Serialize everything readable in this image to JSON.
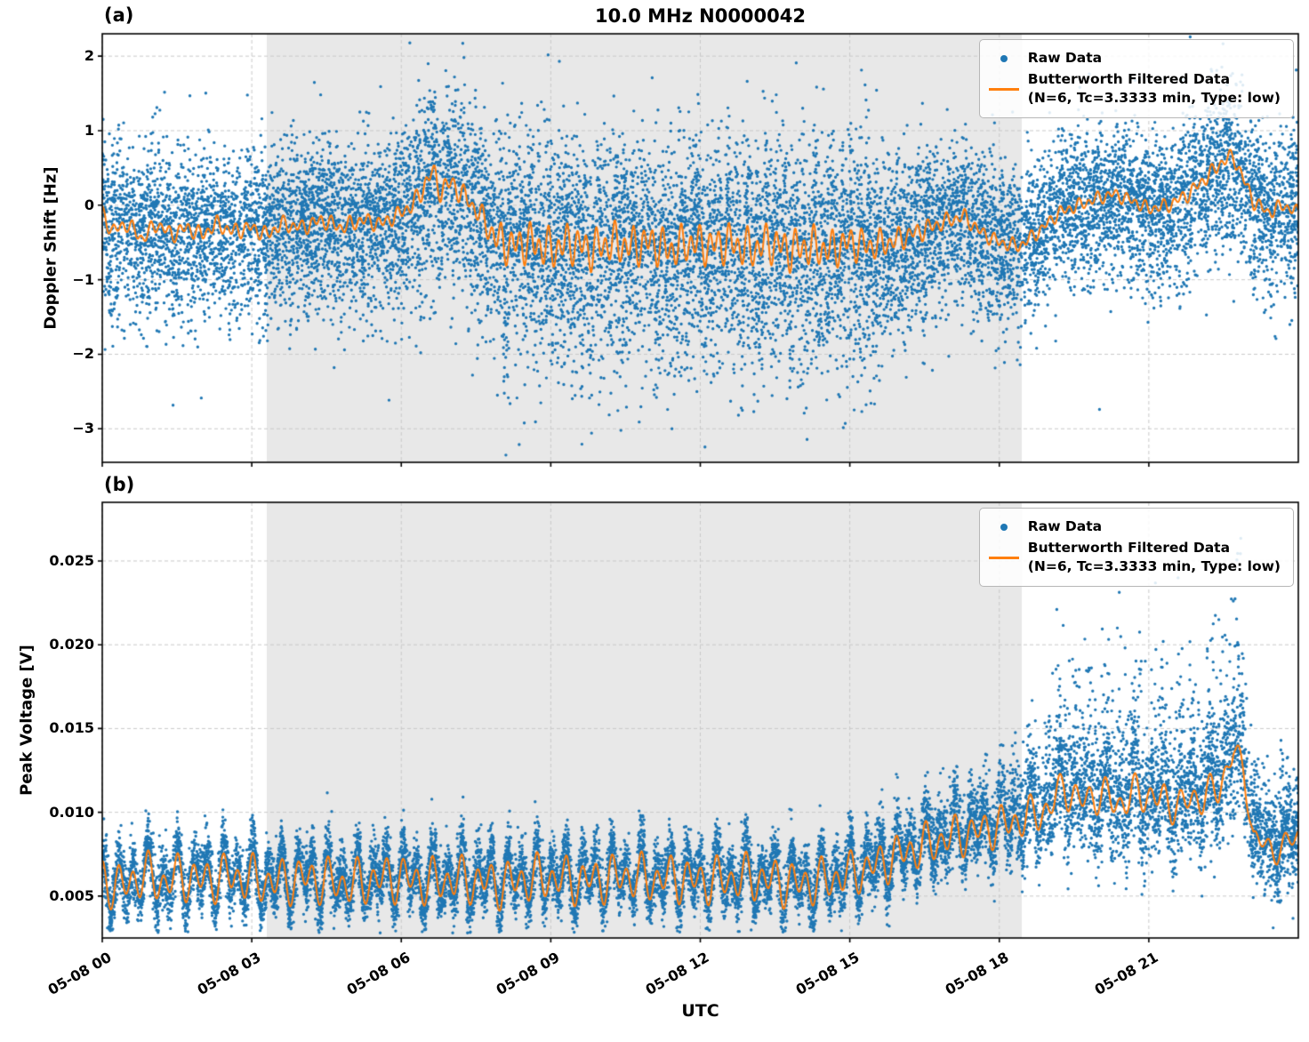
{
  "title": "10.0 MHz N0000042",
  "xlabel": "UTC",
  "legend": {
    "raw_label": "Raw Data",
    "filtered_label": "Butterworth Filtered Data",
    "filtered_sublabel": "(N=6, Tc=3.3333 min, Type: low)"
  },
  "colors": {
    "raw": "#1f77b4",
    "filtered": "#ff7f0e",
    "shade": "#e8e8e8",
    "grid": "#c9c9c9",
    "spine": "#000000"
  },
  "chart_data": [
    {
      "type": "scatter",
      "panel_label": "(a)",
      "ylabel": "Doppler Shift [Hz]",
      "ylim": [
        -3.45,
        2.3
      ],
      "yticks": [
        2,
        1,
        0,
        -1,
        -2,
        -3
      ],
      "ytick_labels": [
        "2",
        "1",
        "0",
        "−1",
        "−2",
        "−3"
      ],
      "xlim_hours": [
        0,
        24
      ],
      "xtick_hours": [
        0,
        3,
        6,
        9,
        12,
        15,
        18,
        21
      ],
      "xtick_labels": [
        "05-08 00",
        "05-08 03",
        "05-08 06",
        "05-08 09",
        "05-08 12",
        "05-08 15",
        "05-08 18",
        "05-08 21"
      ],
      "show_xtick_labels": false,
      "grid": true,
      "legend_position": "upper right",
      "shade_span_hours": [
        3.3,
        18.45
      ],
      "series": [
        {
          "name": "Raw Data",
          "style": "scatter"
        },
        {
          "name": "Butterworth Filtered Data (N=6, Tc=3.3333 min, Type: low)",
          "style": "line"
        }
      ],
      "filtered_trend": [
        [
          0,
          -0.1
        ],
        [
          0.2,
          -0.35
        ],
        [
          0.5,
          -0.25
        ],
        [
          0.8,
          -0.45
        ],
        [
          1.1,
          -0.25
        ],
        [
          1.4,
          -0.4
        ],
        [
          1.7,
          -0.3
        ],
        [
          2,
          -0.4
        ],
        [
          2.3,
          -0.25
        ],
        [
          2.6,
          -0.35
        ],
        [
          3,
          -0.3
        ],
        [
          3.3,
          -0.4
        ],
        [
          3.6,
          -0.25
        ],
        [
          4,
          -0.3
        ],
        [
          4.4,
          -0.2
        ],
        [
          4.8,
          -0.3
        ],
        [
          5.2,
          -0.2
        ],
        [
          5.6,
          -0.25
        ],
        [
          6,
          -0.1
        ],
        [
          6.3,
          0.05
        ],
        [
          6.6,
          0.45
        ],
        [
          6.8,
          0.2
        ],
        [
          7,
          0.3
        ],
        [
          7.3,
          0.1
        ],
        [
          7.6,
          -0.15
        ],
        [
          7.9,
          -0.45
        ],
        [
          8.2,
          -0.55
        ],
        [
          8.6,
          -0.5
        ],
        [
          9,
          -0.6
        ],
        [
          9.4,
          -0.5
        ],
        [
          9.8,
          -0.6
        ],
        [
          10.2,
          -0.5
        ],
        [
          10.6,
          -0.55
        ],
        [
          11,
          -0.5
        ],
        [
          11.4,
          -0.6
        ],
        [
          11.8,
          -0.5
        ],
        [
          12.2,
          -0.55
        ],
        [
          12.6,
          -0.5
        ],
        [
          13,
          -0.6
        ],
        [
          13.4,
          -0.5
        ],
        [
          13.8,
          -0.6
        ],
        [
          14.2,
          -0.55
        ],
        [
          14.6,
          -0.6
        ],
        [
          15,
          -0.5
        ],
        [
          15.4,
          -0.55
        ],
        [
          15.8,
          -0.5
        ],
        [
          16.2,
          -0.4
        ],
        [
          16.6,
          -0.3
        ],
        [
          17,
          -0.2
        ],
        [
          17.3,
          -0.15
        ],
        [
          17.6,
          -0.35
        ],
        [
          18,
          -0.5
        ],
        [
          18.4,
          -0.55
        ],
        [
          18.8,
          -0.35
        ],
        [
          19.2,
          -0.1
        ],
        [
          19.6,
          0.0
        ],
        [
          20,
          0.1
        ],
        [
          20.3,
          0.15
        ],
        [
          20.7,
          0.05
        ],
        [
          21,
          -0.05
        ],
        [
          21.4,
          0.0
        ],
        [
          21.8,
          0.15
        ],
        [
          22.2,
          0.4
        ],
        [
          22.5,
          0.6
        ],
        [
          22.7,
          0.65
        ],
        [
          22.9,
          0.35
        ],
        [
          23.1,
          0.05
        ],
        [
          23.4,
          -0.1
        ],
        [
          23.7,
          0.0
        ],
        [
          24,
          -0.1
        ]
      ],
      "osc_amp": [
        [
          0,
          0.12
        ],
        [
          6,
          0.12
        ],
        [
          6.6,
          0.2
        ],
        [
          7.5,
          0.15
        ],
        [
          8,
          0.3
        ],
        [
          9,
          0.32
        ],
        [
          12,
          0.3
        ],
        [
          14,
          0.32
        ],
        [
          15,
          0.28
        ],
        [
          16,
          0.18
        ],
        [
          17,
          0.12
        ],
        [
          19,
          0.1
        ],
        [
          21,
          0.1
        ],
        [
          22.5,
          0.12
        ],
        [
          24,
          0.1
        ]
      ],
      "osc_periods_h": [
        0.19,
        0.333
      ],
      "osc_phases": [
        0.7,
        2.3
      ],
      "raw_sigma": [
        [
          0,
          0.55
        ],
        [
          3,
          0.5
        ],
        [
          5,
          0.5
        ],
        [
          6.5,
          0.6
        ],
        [
          8,
          0.65
        ],
        [
          9,
          0.7
        ],
        [
          11,
          0.65
        ],
        [
          13,
          0.7
        ],
        [
          15,
          0.65
        ],
        [
          16,
          0.55
        ],
        [
          17,
          0.5
        ],
        [
          18,
          0.5
        ],
        [
          19,
          0.4
        ],
        [
          20,
          0.45
        ],
        [
          21,
          0.45
        ],
        [
          22,
          0.5
        ],
        [
          22.7,
          0.55
        ],
        [
          23,
          0.45
        ],
        [
          24,
          0.5
        ]
      ],
      "raw_osc_scale": 1.0,
      "skew_down": 1.2,
      "tail_prob": 0.012,
      "tail_scale": 0.9,
      "n_raw_points": 15000,
      "seed": 42
    },
    {
      "type": "scatter",
      "panel_label": "(b)",
      "ylabel": "Peak Voltage [V]",
      "ylim": [
        0.0025,
        0.0285
      ],
      "yticks": [
        0.025,
        0.02,
        0.015,
        0.01,
        0.005
      ],
      "ytick_labels": [
        "0.025",
        "0.020",
        "0.015",
        "0.010",
        "0.005"
      ],
      "xlim_hours": [
        0,
        24
      ],
      "xtick_hours": [
        0,
        3,
        6,
        9,
        12,
        15,
        18,
        21
      ],
      "xtick_labels": [
        "05-08 00",
        "05-08 03",
        "05-08 06",
        "05-08 09",
        "05-08 12",
        "05-08 15",
        "05-08 18",
        "05-08 21"
      ],
      "show_xtick_labels": true,
      "grid": true,
      "legend_position": "upper right",
      "shade_span_hours": [
        3.3,
        18.45
      ],
      "series": [
        {
          "name": "Raw Data",
          "style": "scatter"
        },
        {
          "name": "Butterworth Filtered Data (N=6, Tc=3.3333 min, Type: low)",
          "style": "line"
        }
      ],
      "filtered_trend": [
        [
          0,
          0.006
        ],
        [
          0.4,
          0.0055
        ],
        [
          0.8,
          0.0063
        ],
        [
          1.2,
          0.0058
        ],
        [
          1.6,
          0.0062
        ],
        [
          2,
          0.0059
        ],
        [
          2.5,
          0.0062
        ],
        [
          3,
          0.006
        ],
        [
          3.5,
          0.0058
        ],
        [
          4,
          0.0061
        ],
        [
          4.5,
          0.0059
        ],
        [
          5,
          0.0057
        ],
        [
          5.5,
          0.006
        ],
        [
          6,
          0.0061
        ],
        [
          6.5,
          0.0058
        ],
        [
          7,
          0.006
        ],
        [
          7.5,
          0.0059
        ],
        [
          8,
          0.0057
        ],
        [
          8.5,
          0.006
        ],
        [
          9,
          0.0061
        ],
        [
          9.5,
          0.0059
        ],
        [
          10,
          0.006
        ],
        [
          10.5,
          0.0062
        ],
        [
          11,
          0.006
        ],
        [
          11.5,
          0.0061
        ],
        [
          12,
          0.0059
        ],
        [
          12.5,
          0.006
        ],
        [
          13,
          0.0061
        ],
        [
          13.5,
          0.0059
        ],
        [
          14,
          0.0057
        ],
        [
          14.5,
          0.0059
        ],
        [
          15,
          0.0063
        ],
        [
          15.5,
          0.0068
        ],
        [
          16,
          0.0075
        ],
        [
          16.5,
          0.008
        ],
        [
          17,
          0.0085
        ],
        [
          17.5,
          0.0088
        ],
        [
          18,
          0.0092
        ],
        [
          18.5,
          0.0096
        ],
        [
          19,
          0.0102
        ],
        [
          19.3,
          0.0116
        ],
        [
          19.6,
          0.0106
        ],
        [
          20,
          0.0111
        ],
        [
          20.4,
          0.0105
        ],
        [
          20.8,
          0.0112
        ],
        [
          21.2,
          0.0108
        ],
        [
          21.6,
          0.0104
        ],
        [
          22,
          0.0109
        ],
        [
          22.4,
          0.0113
        ],
        [
          22.7,
          0.0138
        ],
        [
          22.9,
          0.0124
        ],
        [
          23.1,
          0.0086
        ],
        [
          23.5,
          0.0076
        ],
        [
          24,
          0.0086
        ]
      ],
      "osc_amp": [
        [
          0,
          0.0016
        ],
        [
          14,
          0.0016
        ],
        [
          15,
          0.0015
        ],
        [
          16,
          0.0015
        ],
        [
          18,
          0.0014
        ],
        [
          19,
          0.0013
        ],
        [
          21,
          0.0013
        ],
        [
          22.5,
          0.0012
        ],
        [
          23,
          0.0008
        ],
        [
          24,
          0.0009
        ]
      ],
      "osc_periods_h": [
        0.3,
        0.52
      ],
      "osc_phases": [
        1.1,
        2.8
      ],
      "raw_sigma": [
        [
          0,
          0.0008
        ],
        [
          15,
          0.0008
        ],
        [
          16,
          0.0009
        ],
        [
          17,
          0.001
        ],
        [
          18,
          0.0011
        ],
        [
          19,
          0.0015
        ],
        [
          20,
          0.0017
        ],
        [
          21,
          0.0017
        ],
        [
          22,
          0.0017
        ],
        [
          22.7,
          0.0019
        ],
        [
          23,
          0.0013
        ],
        [
          24,
          0.0013
        ]
      ],
      "sigma_up": [
        [
          0,
          0.0007
        ],
        [
          15,
          0.0007
        ],
        [
          16,
          0.0009
        ],
        [
          17,
          0.0011
        ],
        [
          18,
          0.0014
        ],
        [
          18.8,
          0.002
        ],
        [
          19.2,
          0.0032
        ],
        [
          19.6,
          0.0036
        ],
        [
          20,
          0.003
        ],
        [
          20.5,
          0.0036
        ],
        [
          21,
          0.0032
        ],
        [
          21.5,
          0.0037
        ],
        [
          22,
          0.0032
        ],
        [
          22.5,
          0.0036
        ],
        [
          22.8,
          0.0042
        ],
        [
          23,
          0.0024
        ],
        [
          24,
          0.002
        ]
      ],
      "up_prob": 0.3,
      "clamp_min": 0.0028,
      "clamp_jitter": 0.0004,
      "raw_osc_scale": 1.25,
      "n_raw_points": 15000,
      "seed": 7
    }
  ]
}
